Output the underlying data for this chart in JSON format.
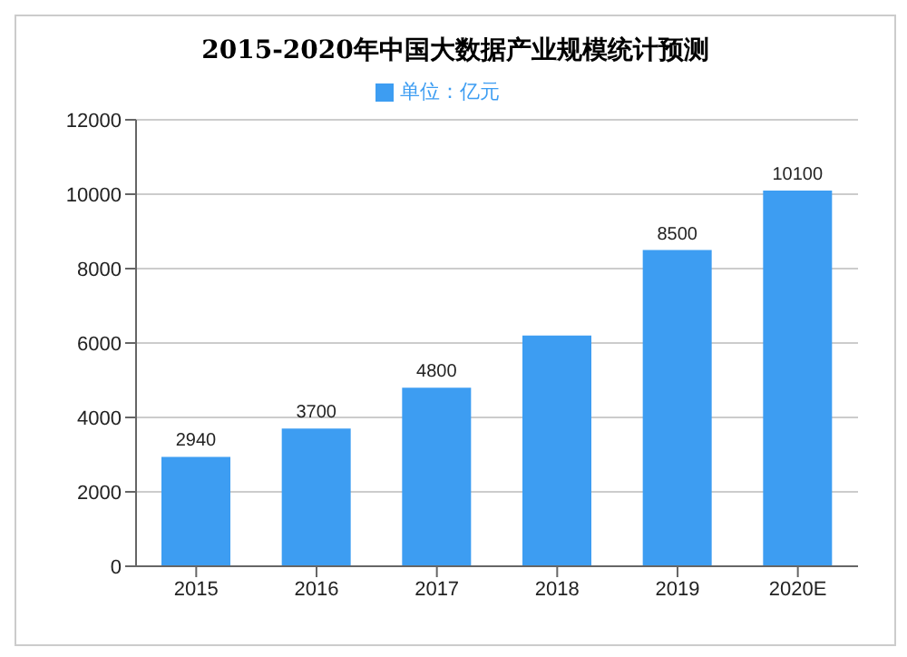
{
  "chart_data": {
    "type": "bar",
    "title": "2015-2020年中国大数据产业规模统计预测",
    "categories": [
      "2015",
      "2016",
      "2017",
      "2018",
      "2019",
      "2020E"
    ],
    "series": [
      {
        "name": "单位：亿元",
        "color": "#3d9df2",
        "values": [
          2940,
          3700,
          4800,
          6200,
          8500,
          10100
        ],
        "value_labels": [
          "2940",
          "3700",
          "4800",
          null,
          "8500",
          "10100"
        ]
      }
    ],
    "ylim": [
      0,
      12000
    ],
    "yticks": [
      0,
      2000,
      4000,
      6000,
      8000,
      10000,
      12000
    ],
    "grid": "y",
    "legend": "top"
  }
}
